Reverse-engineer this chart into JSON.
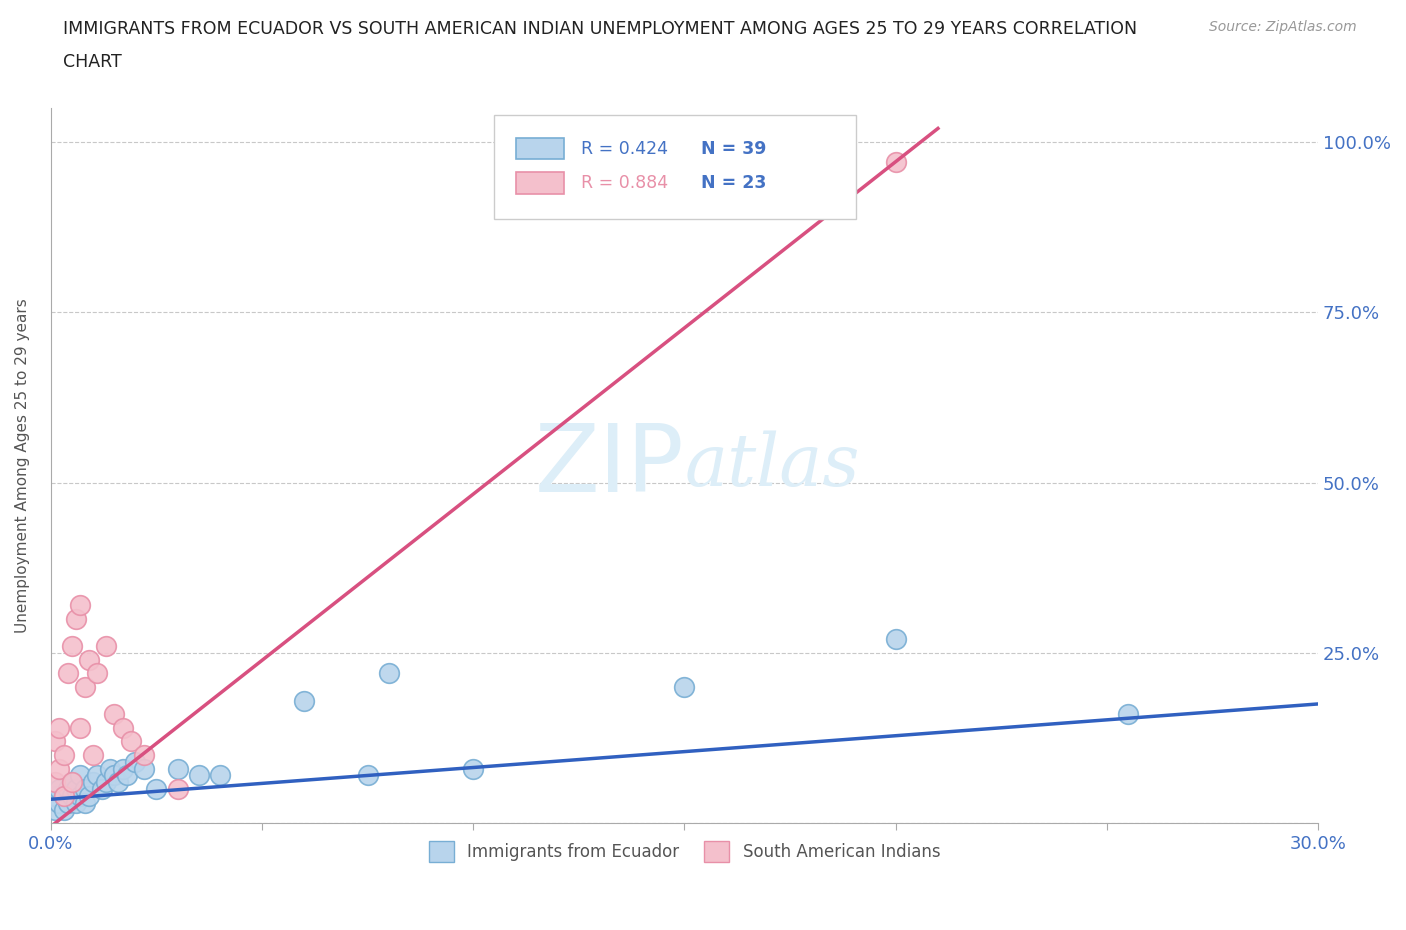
{
  "title_line1": "IMMIGRANTS FROM ECUADOR VS SOUTH AMERICAN INDIAN UNEMPLOYMENT AMONG AGES 25 TO 29 YEARS CORRELATION",
  "title_line2": "CHART",
  "source": "Source: ZipAtlas.com",
  "ylabel": "Unemployment Among Ages 25 to 29 years",
  "xlim": [
    0.0,
    0.3
  ],
  "ylim": [
    0.0,
    1.05
  ],
  "xticks": [
    0.0,
    0.05,
    0.1,
    0.15,
    0.2,
    0.25,
    0.3
  ],
  "xticklabels": [
    "0.0%",
    "",
    "",
    "",
    "",
    "",
    "30.0%"
  ],
  "yticks": [
    0.0,
    0.25,
    0.5,
    0.75,
    1.0
  ],
  "ytick_labels_right": [
    "",
    "25.0%",
    "50.0%",
    "75.0%",
    "100.0%"
  ],
  "r_ecuador": 0.424,
  "n_ecuador": 39,
  "r_south_am": 0.884,
  "n_south_am": 23,
  "ecuador_fill": "#b8d4ec",
  "ecuador_edge": "#78aed4",
  "south_fill": "#f4c0cc",
  "south_edge": "#e890a8",
  "ecuador_line": "#3060c0",
  "south_line": "#d85080",
  "tick_color": "#4472c4",
  "grid_color": "#c8c8c8",
  "watermark_color": "#ddeef8",
  "bg": "#ffffff",
  "ecuador_x": [
    0.001,
    0.001,
    0.002,
    0.002,
    0.003,
    0.003,
    0.004,
    0.004,
    0.005,
    0.005,
    0.006,
    0.006,
    0.007,
    0.007,
    0.008,
    0.008,
    0.009,
    0.01,
    0.011,
    0.012,
    0.013,
    0.014,
    0.015,
    0.016,
    0.017,
    0.018,
    0.02,
    0.022,
    0.025,
    0.03,
    0.035,
    0.04,
    0.06,
    0.075,
    0.08,
    0.1,
    0.15,
    0.2,
    0.255
  ],
  "ecuador_y": [
    0.02,
    0.04,
    0.03,
    0.05,
    0.02,
    0.04,
    0.05,
    0.03,
    0.04,
    0.06,
    0.03,
    0.05,
    0.04,
    0.07,
    0.05,
    0.03,
    0.04,
    0.06,
    0.07,
    0.05,
    0.06,
    0.08,
    0.07,
    0.06,
    0.08,
    0.07,
    0.09,
    0.08,
    0.05,
    0.08,
    0.07,
    0.07,
    0.18,
    0.07,
    0.22,
    0.08,
    0.2,
    0.27,
    0.16
  ],
  "south_x": [
    0.001,
    0.001,
    0.002,
    0.002,
    0.003,
    0.003,
    0.004,
    0.005,
    0.005,
    0.006,
    0.007,
    0.007,
    0.008,
    0.009,
    0.01,
    0.011,
    0.013,
    0.015,
    0.017,
    0.019,
    0.022,
    0.03,
    0.2
  ],
  "south_y": [
    0.06,
    0.12,
    0.08,
    0.14,
    0.04,
    0.1,
    0.22,
    0.26,
    0.06,
    0.3,
    0.14,
    0.32,
    0.2,
    0.24,
    0.1,
    0.22,
    0.26,
    0.16,
    0.14,
    0.12,
    0.1,
    0.05,
    0.97
  ],
  "ecuador_trendline_x": [
    0.0,
    0.3
  ],
  "ecuador_trendline_y": [
    0.035,
    0.175
  ],
  "south_trendline_x": [
    0.0,
    0.21
  ],
  "south_trendline_y": [
    -0.005,
    1.02
  ]
}
